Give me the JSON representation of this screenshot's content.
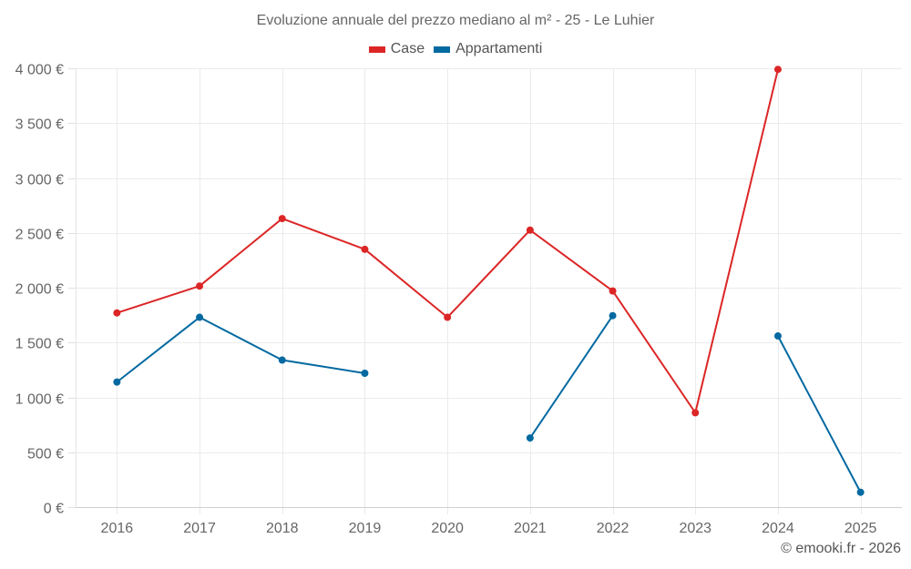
{
  "chart_data": {
    "type": "line",
    "title": "Evoluzione annuale del prezzo mediano al m² - 25 - Le Luhier",
    "xlabel": "",
    "ylabel": "",
    "categories": [
      "2016",
      "2017",
      "2018",
      "2019",
      "2020",
      "2021",
      "2022",
      "2023",
      "2024",
      "2025"
    ],
    "ylim": [
      0,
      4000
    ],
    "yticks": [
      0,
      500,
      1000,
      1500,
      2000,
      2500,
      3000,
      3500,
      4000
    ],
    "ytick_labels": [
      "0 €",
      "500 €",
      "1 000 €",
      "1 500 €",
      "2 000 €",
      "2 500 €",
      "3 000 €",
      "3 500 €",
      "4 000 €"
    ],
    "grid": true,
    "legend_position": "top-center",
    "series": [
      {
        "name": "Case",
        "color": "#dc2626",
        "values": [
          1770,
          2015,
          2630,
          2350,
          1730,
          2525,
          1970,
          860,
          3990,
          null
        ]
      },
      {
        "name": "Appartamenti",
        "color": "#0369a1",
        "values": [
          1140,
          1730,
          1340,
          1220,
          null,
          630,
          1745,
          null,
          1560,
          135
        ]
      }
    ],
    "credit": "© emooki.fr - 2026"
  }
}
